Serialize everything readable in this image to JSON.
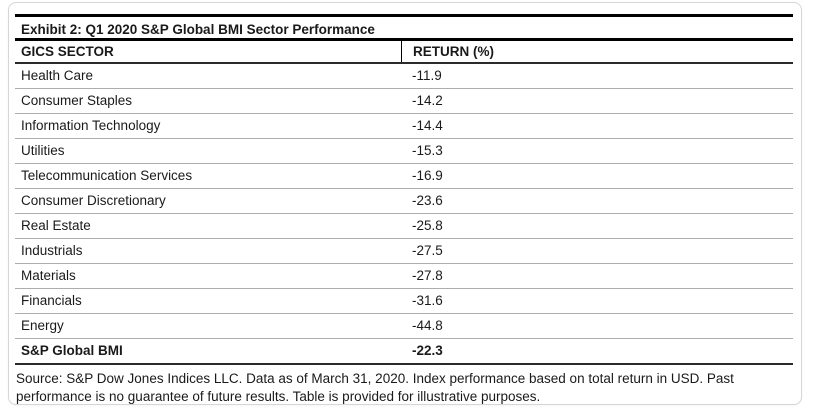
{
  "exhibit": {
    "title": "Exhibit 2: Q1 2020 S&P Global BMI Sector Performance",
    "table": {
      "columns": [
        "GICS SECTOR",
        "RETURN (%)"
      ],
      "rows": [
        {
          "sector": "Health Care",
          "return": "-11.9"
        },
        {
          "sector": "Consumer Staples",
          "return": "-14.2"
        },
        {
          "sector": "Information Technology",
          "return": "-14.4"
        },
        {
          "sector": "Utilities",
          "return": "-15.3"
        },
        {
          "sector": "Telecommunication Services",
          "return": "-16.9"
        },
        {
          "sector": "Consumer Discretionary",
          "return": "-23.6"
        },
        {
          "sector": "Real Estate",
          "return": "-25.8"
        },
        {
          "sector": "Industrials",
          "return": "-27.5"
        },
        {
          "sector": "Materials",
          "return": "-27.8"
        },
        {
          "sector": "Financials",
          "return": "-31.6"
        },
        {
          "sector": "Energy",
          "return": "-44.8"
        }
      ],
      "total_row": {
        "sector": "S&P Global BMI",
        "return": "-22.3"
      }
    },
    "source": "Source: S&P Dow Jones Indices LLC. Data as of March 31, 2020. Index performance based on total return in USD. Past performance is no guarantee of future results. Table is provided for illustrative purposes.",
    "colors": {
      "line_strong": "#000000",
      "line_medium": "#2b2b2b",
      "row_divider": "#adadad",
      "frame_border": "#d6d6d6",
      "text": "#1a1a1a"
    }
  },
  "chart_data": {
    "type": "table",
    "title": "Exhibit 2: Q1 2020 S&P Global BMI Sector Performance",
    "categories": [
      "Health Care",
      "Consumer Staples",
      "Information Technology",
      "Utilities",
      "Telecommunication Services",
      "Consumer Discretionary",
      "Real Estate",
      "Industrials",
      "Materials",
      "Financials",
      "Energy",
      "S&P Global BMI"
    ],
    "values": [
      -11.9,
      -14.2,
      -14.4,
      -15.3,
      -16.9,
      -23.6,
      -25.8,
      -27.5,
      -27.8,
      -31.6,
      -44.8,
      -22.3
    ],
    "xlabel": "GICS SECTOR",
    "ylabel": "RETURN (%)"
  }
}
